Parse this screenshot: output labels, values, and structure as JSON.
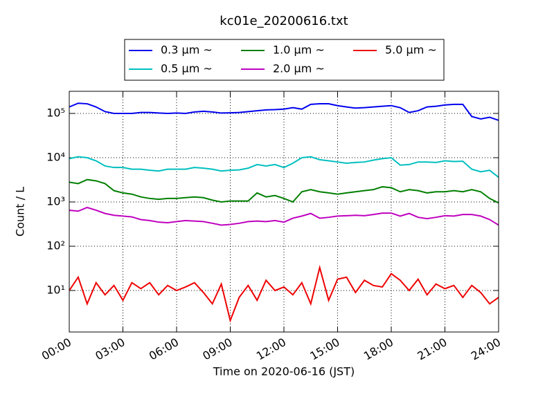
{
  "chart_data": {
    "type": "line",
    "title": "kc01e_20200616.txt",
    "x_label": "Time on 2020-06-16 (JST)",
    "y_label": "Count / L",
    "log_y": true,
    "grid": true,
    "xlim": [
      0,
      24
    ],
    "xticks": [
      {
        "value": 0,
        "label": "00:00"
      },
      {
        "value": 3,
        "label": "03:00"
      },
      {
        "value": 6,
        "label": "06:00"
      },
      {
        "value": 9,
        "label": "09:00"
      },
      {
        "value": 12,
        "label": "12:00"
      },
      {
        "value": 15,
        "label": "15:00"
      },
      {
        "value": 18,
        "label": "18:00"
      },
      {
        "value": 21,
        "label": "21:00"
      },
      {
        "value": 24,
        "label": "24:00"
      }
    ],
    "ylim": [
      1.155,
      316000
    ],
    "yticks": [
      {
        "value": 10,
        "label": "10¹"
      },
      {
        "value": 100,
        "label": "10²"
      },
      {
        "value": 1000,
        "label": "10³"
      },
      {
        "value": 10000,
        "label": "10⁴"
      },
      {
        "value": 100000,
        "label": "10⁵"
      }
    ],
    "legend_position": "top",
    "x": [
      0,
      0.5,
      1,
      1.5,
      2,
      2.5,
      3,
      3.5,
      4,
      4.5,
      5,
      5.5,
      6,
      6.5,
      7,
      7.5,
      8,
      8.5,
      9,
      9.5,
      10,
      10.5,
      11,
      11.5,
      12,
      12.5,
      13,
      13.5,
      14,
      14.5,
      15,
      15.5,
      16,
      16.5,
      17,
      17.5,
      18,
      18.5,
      19,
      19.5,
      20,
      20.5,
      21,
      21.5,
      22,
      22.5,
      23,
      23.5,
      24
    ],
    "series": [
      {
        "name": "0.3 μm  ~",
        "color": "#0000ee",
        "values": [
          140000,
          170000,
          165000,
          140000,
          110000,
          100000,
          100000,
          100000,
          105000,
          105000,
          102000,
          100000,
          102000,
          100000,
          108000,
          112000,
          108000,
          102000,
          103000,
          105000,
          110000,
          115000,
          120000,
          122000,
          125000,
          135000,
          125000,
          160000,
          165000,
          165000,
          150000,
          140000,
          132000,
          135000,
          140000,
          145000,
          150000,
          135000,
          105000,
          115000,
          140000,
          145000,
          155000,
          160000,
          160000,
          85000,
          75000,
          82000,
          70000
        ]
      },
      {
        "name": "0.5 μm  ~",
        "color": "#00bfbf",
        "values": [
          9500,
          10500,
          10000,
          8500,
          6500,
          6000,
          6000,
          5500,
          5500,
          5200,
          5000,
          5500,
          5500,
          5500,
          6000,
          5800,
          5500,
          5000,
          5200,
          5300,
          5800,
          7000,
          6500,
          7000,
          6000,
          7500,
          10000,
          10500,
          9000,
          8500,
          8000,
          7500,
          7800,
          8000,
          8800,
          9500,
          10000,
          6800,
          7000,
          8000,
          8000,
          7800,
          8500,
          8200,
          8300,
          5500,
          4800,
          5200,
          3600
        ]
      },
      {
        "name": "1.0 μm  ~",
        "color": "#007f00",
        "values": [
          2800,
          2600,
          3200,
          3000,
          2600,
          1800,
          1600,
          1500,
          1300,
          1200,
          1150,
          1200,
          1200,
          1250,
          1300,
          1250,
          1100,
          1000,
          1050,
          1050,
          1050,
          1600,
          1300,
          1400,
          1200,
          1000,
          1700,
          1900,
          1700,
          1600,
          1500,
          1600,
          1700,
          1800,
          1900,
          2200,
          2100,
          1700,
          1900,
          1800,
          1600,
          1700,
          1700,
          1800,
          1700,
          1900,
          1700,
          1200,
          950
        ]
      },
      {
        "name": "2.0 μm  ~",
        "color": "#bf00bf",
        "values": [
          650,
          620,
          750,
          650,
          550,
          500,
          480,
          460,
          400,
          380,
          350,
          340,
          360,
          380,
          370,
          360,
          330,
          300,
          310,
          330,
          360,
          370,
          360,
          380,
          350,
          430,
          480,
          550,
          430,
          450,
          480,
          490,
          500,
          490,
          520,
          560,
          560,
          480,
          550,
          450,
          420,
          450,
          490,
          480,
          520,
          520,
          480,
          400,
          300
        ]
      },
      {
        "name": "5.0 μm  ~",
        "color": "#ee0000",
        "values": [
          10,
          20,
          5,
          15,
          8,
          13,
          6,
          15,
          11,
          15,
          8,
          13,
          10,
          12,
          15,
          9,
          5,
          14,
          2.1,
          7,
          13,
          6,
          17,
          10,
          12,
          8,
          15,
          5,
          33,
          6,
          18,
          20,
          9,
          17,
          13,
          12,
          24,
          17,
          10,
          18,
          8,
          14,
          11,
          13,
          7,
          13,
          9,
          5,
          7
        ]
      }
    ]
  }
}
